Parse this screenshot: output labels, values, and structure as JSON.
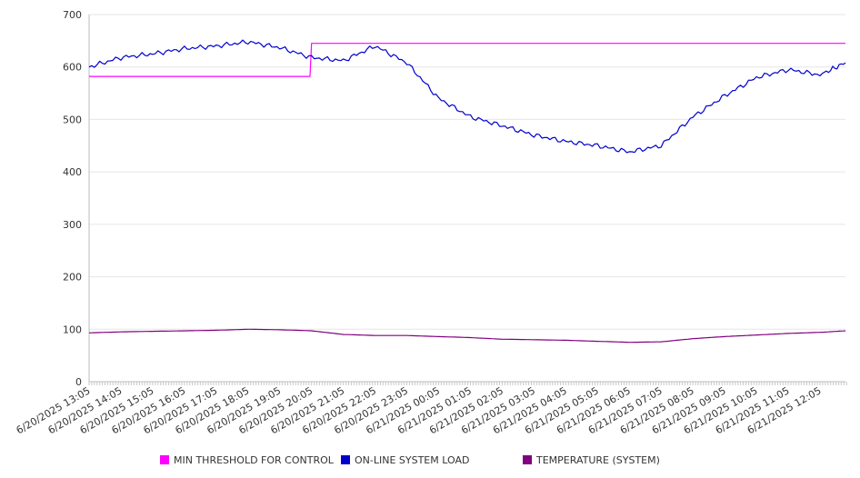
{
  "chart_data": {
    "type": "line",
    "y_ticks": [
      "0",
      "100",
      "200",
      "300",
      "400",
      "500",
      "600",
      "700"
    ],
    "ylim": [
      0,
      700
    ],
    "grid": true,
    "legend_position": "bottom",
    "x_tick_labels": [
      "6/20/2025 13:05",
      "6/20/2025 14:05",
      "6/20/2025 15:05",
      "6/20/2025 16:05",
      "6/20/2025 17:05",
      "6/20/2025 18:05",
      "6/20/2025 19:05",
      "6/20/2025 20:05",
      "6/20/2025 21:05",
      "6/20/2025 22:05",
      "6/20/2025 23:05",
      "6/21/2025 00:05",
      "6/21/2025 01:05",
      "6/21/2025 02:05",
      "6/21/2025 03:05",
      "6/21/2025 04:05",
      "6/21/2025 05:05",
      "6/21/2025 06:05",
      "6/21/2025 07:05",
      "6/21/2025 08:05",
      "6/21/2025 09:05",
      "6/21/2025 10:05",
      "6/21/2025 11:05",
      "6/21/2025 12:05"
    ],
    "x_hours": [
      0,
      1,
      2,
      3,
      4,
      5,
      6,
      7,
      8,
      9,
      10,
      11,
      12,
      13,
      14,
      15,
      16,
      17,
      18,
      19,
      20,
      21,
      22,
      23,
      23.8
    ],
    "series": [
      {
        "name": "MIN THRESHOLD FOR CONTROL",
        "color": "#ff00ff",
        "values": [
          582,
          582,
          582,
          582,
          582,
          582,
          582,
          645,
          645,
          645,
          645,
          645,
          645,
          645,
          645,
          645,
          645,
          645,
          645,
          645,
          645,
          645,
          645,
          645,
          645
        ]
      },
      {
        "name": "ON-LINE SYSTEM LOAD",
        "color": "#0000cc",
        "values": [
          600,
          618,
          625,
          635,
          640,
          648,
          637,
          618,
          612,
          640,
          608,
          540,
          505,
          488,
          470,
          458,
          450,
          438,
          450,
          505,
          545,
          580,
          595,
          585,
          608
        ]
      },
      {
        "name": "TEMPERATURE (SYSTEM)",
        "color": "#800080",
        "values": [
          93,
          95,
          96,
          97,
          98,
          100,
          99,
          97,
          90,
          88,
          88,
          86,
          84,
          81,
          80,
          79,
          77,
          75,
          76,
          82,
          86,
          89,
          92,
          94,
          97
        ]
      }
    ]
  }
}
